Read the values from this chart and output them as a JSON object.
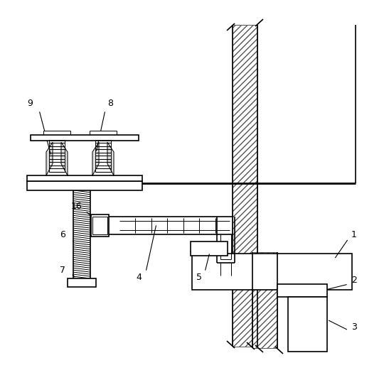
{
  "bg_color": "#ffffff",
  "line_color": "#000000",
  "lw": 1.2,
  "lw_thin": 0.7,
  "lw_thick": 2.0,
  "label_fs": 9
}
